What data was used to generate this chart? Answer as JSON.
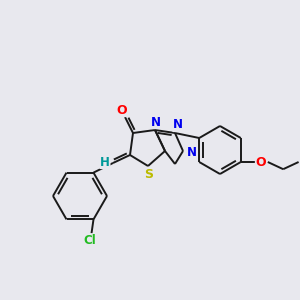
{
  "background_color": "#e8e8ee",
  "bond_color": "#1a1a1a",
  "atom_colors": {
    "O": "#ff0000",
    "N": "#0000ee",
    "S": "#bbbb00",
    "Cl": "#22bb22",
    "H": "#009999"
  },
  "figsize": [
    3.0,
    3.0
  ],
  "dpi": 100
}
